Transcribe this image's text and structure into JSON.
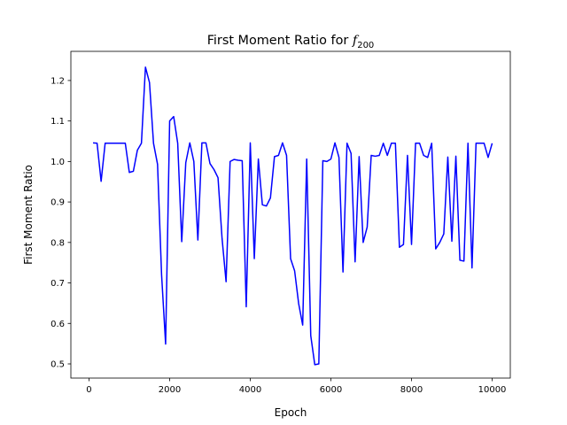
{
  "chart_data": {
    "type": "line",
    "title_prefix": "First Moment Ratio for ",
    "title_var": "f",
    "title_sub": "200",
    "xlabel": "Epoch",
    "ylabel": "First Moment Ratio",
    "xlim": [
      -450,
      10450
    ],
    "ylim": [
      0.465,
      1.272
    ],
    "x_ticks": [
      0,
      2000,
      4000,
      6000,
      8000,
      10000
    ],
    "x_tick_labels": [
      "0",
      "2000",
      "4000",
      "6000",
      "8000",
      "10000"
    ],
    "y_ticks": [
      0.5,
      0.6,
      0.7,
      0.8,
      0.9,
      1.0,
      1.1,
      1.2
    ],
    "y_tick_labels": [
      "0.5",
      "0.6",
      "0.7",
      "0.8",
      "0.9",
      "1.0",
      "1.1",
      "1.2"
    ],
    "grid": false,
    "line_color": "#0000ff",
    "series": [
      {
        "x": [
          100,
          200,
          300,
          400,
          500,
          600,
          700,
          800,
          900,
          1000,
          1100,
          1200,
          1300,
          1400,
          1500,
          1600,
          1700,
          1800,
          1900,
          2000,
          2100,
          2200,
          2300,
          2400,
          2500,
          2600,
          2700,
          2800,
          2900,
          3000,
          3100,
          3200,
          3300,
          3400,
          3500,
          3600,
          3700,
          3800,
          3900,
          4000,
          4100,
          4200,
          4300,
          4400,
          4500,
          4600,
          4700,
          4800,
          4900,
          5000,
          5100,
          5200,
          5300,
          5400,
          5500,
          5600,
          5700,
          5800,
          5900,
          6000,
          6100,
          6200,
          6300,
          6400,
          6500,
          6600,
          6700,
          6800,
          6900,
          7000,
          7100,
          7200,
          7300,
          7400,
          7500,
          7600,
          7700,
          7800,
          7900,
          8000,
          8100,
          8200,
          8300,
          8400,
          8500,
          8600,
          8700,
          8800,
          8900,
          9000,
          9100,
          9200,
          9300,
          9400,
          9500,
          9600,
          9700,
          9800,
          9900,
          10000
        ],
        "values": [
          1.046,
          1.045,
          0.951,
          1.045,
          1.045,
          1.045,
          1.045,
          1.045,
          1.045,
          0.973,
          0.976,
          1.028,
          1.045,
          1.233,
          1.195,
          1.045,
          0.993,
          0.72,
          0.549,
          1.1,
          1.111,
          1.045,
          0.802,
          0.997,
          1.046,
          1.0,
          0.806,
          1.046,
          1.046,
          0.995,
          0.98,
          0.96,
          0.81,
          0.703,
          1.0,
          1.005,
          1.003,
          1.002,
          0.641,
          1.046,
          0.76,
          1.006,
          0.893,
          0.89,
          0.91,
          1.012,
          1.015,
          1.046,
          1.015,
          0.76,
          0.73,
          0.649,
          0.596,
          1.006,
          0.57,
          0.498,
          0.5,
          1.002,
          1.0,
          1.006,
          1.046,
          1.01,
          0.727,
          1.045,
          1.02,
          0.752,
          1.012,
          0.8,
          0.838,
          1.015,
          1.013,
          1.015,
          1.045,
          1.015,
          1.045,
          1.045,
          0.788,
          0.795,
          1.015,
          0.795,
          1.045,
          1.045,
          1.015,
          1.01,
          1.045,
          0.784,
          0.8,
          0.821,
          1.011,
          0.803,
          1.013,
          0.756,
          0.754,
          1.045,
          0.737,
          1.045,
          1.045,
          1.045,
          1.01,
          1.045
        ]
      }
    ]
  }
}
